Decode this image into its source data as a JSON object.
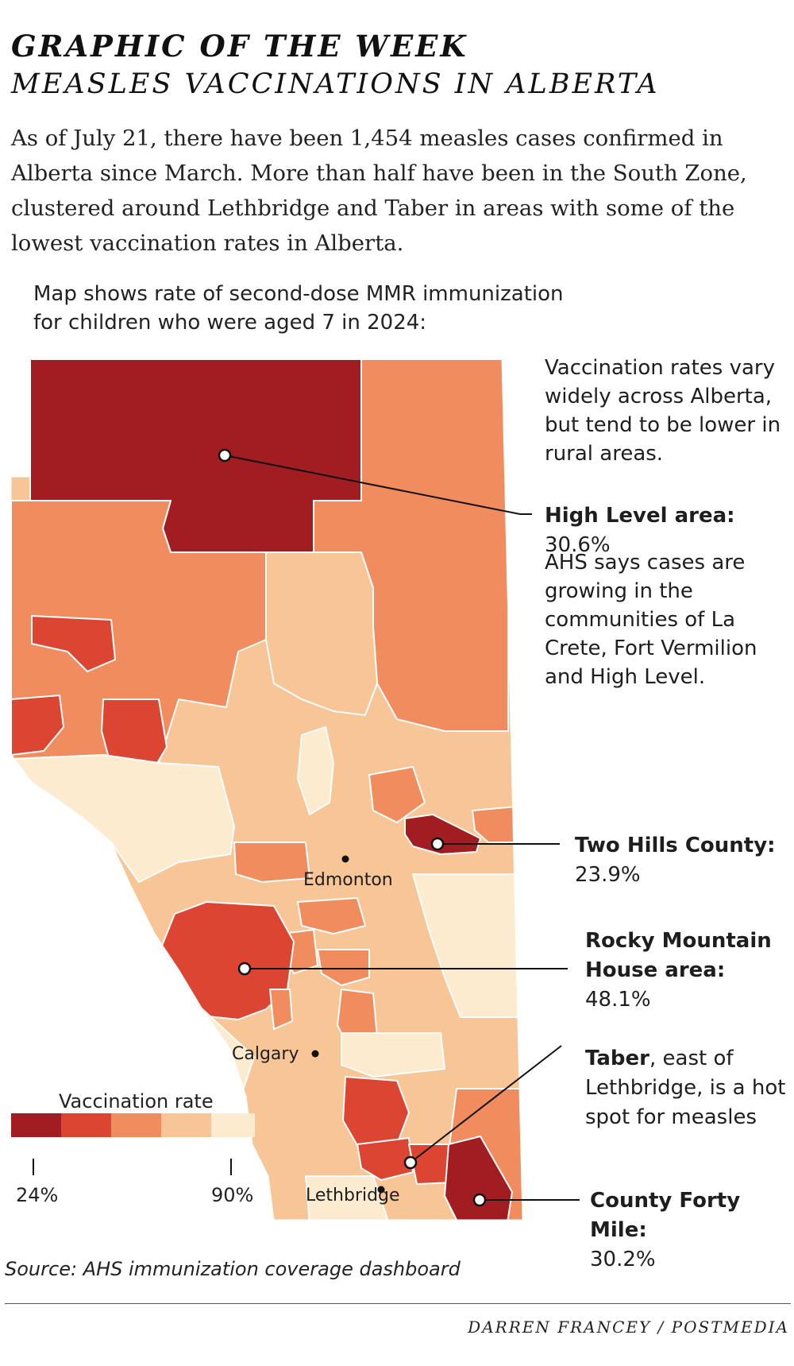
{
  "header": {
    "kicker": "GRAPHIC OF THE WEEK",
    "title": "MEASLES VACCINATIONS IN ALBERTA",
    "intro": "As of July 21, there have been 1,454 measles cases confirmed in Alberta since March. More than half have been in the South Zone, clustered around Lethbridge and Taber in areas with some of the lowest vaccination rates in Alberta."
  },
  "map": {
    "subhead_line1": "Map shows rate of second-dose MMR immunization",
    "subhead_line2": "for children who were aged 7 in 2024:",
    "cities": {
      "edmonton": "Edmonton",
      "calgary": "Calgary",
      "lethbridge": "Lethbridge"
    },
    "colors": {
      "darkest": "#a11d22",
      "dark": "#dc4532",
      "mid": "#f08c5e",
      "light": "#f8c597",
      "lightest": "#fdebd0"
    }
  },
  "notes": {
    "top": "Vaccination rates vary widely across Alberta, but tend to be lower in rural areas.",
    "middle": "AHS says cases are growing in the communities of La Crete, Fort Vermilion and High Level."
  },
  "callouts": {
    "high_level": {
      "name": "High Level area:",
      "value": "30.6%"
    },
    "two_hills": {
      "name": "Two Hills County:",
      "value": "23.9%"
    },
    "rocky": {
      "name_line1": "Rocky Mountain",
      "name_line2": "House area:",
      "value": "48.1%"
    },
    "taber": {
      "name": "Taber",
      "rest": ", east of Lethbridge, is a hot spot for measles"
    },
    "forty_mile": {
      "name": "County Forty Mile:",
      "value": "30.2%"
    }
  },
  "legend": {
    "title": "Vaccination rate",
    "min_label": "24%",
    "max_label": "90%"
  },
  "footer": {
    "source": "Source: AHS immunization coverage dashboard",
    "credit": "DARREN FRANCEY / POSTMEDIA"
  }
}
